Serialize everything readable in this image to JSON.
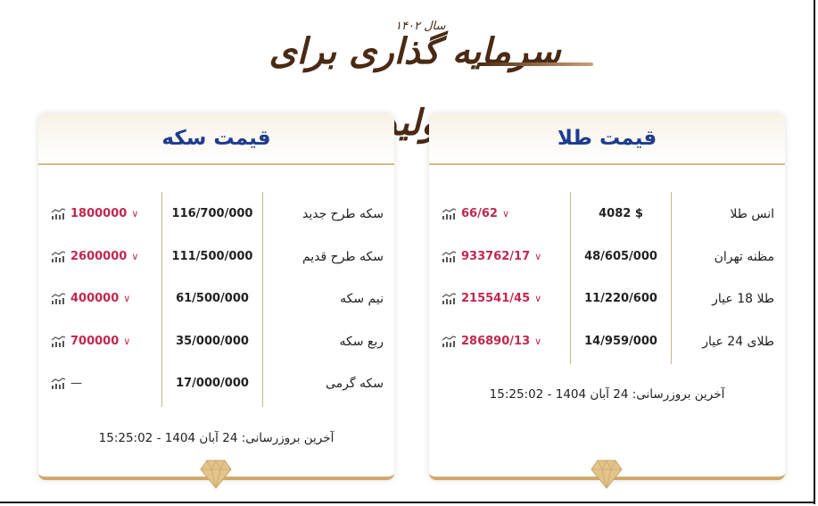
{
  "logo": {
    "text": "سرمایه گذاری برای تولید",
    "year": "سال ۱۴۰۲"
  },
  "colors": {
    "title": "#1f3c8f",
    "accent_gold": "#d2a96a",
    "change_down": "#c0284f"
  },
  "gold": {
    "title": "قیمت طلا",
    "rows": [
      {
        "name": "انس طلا",
        "price": "4082 $",
        "change": "66/62",
        "trend": "down"
      },
      {
        "name": "مظنه تهران",
        "price": "48/605/000",
        "change": "933762/17",
        "trend": "down"
      },
      {
        "name": "طلا 18 عیار",
        "price": "11/220/600",
        "change": "215541/45",
        "trend": "down"
      },
      {
        "name": "طلای 24 عیار",
        "price": "14/959/000",
        "change": "286890/13",
        "trend": "down"
      }
    ],
    "updated": "آخرین بروزرسانی: 24 آبان 1404 - 15:25:02"
  },
  "coin": {
    "title": "قیمت سکه",
    "rows": [
      {
        "name": "سکه طرح جدید",
        "price": "116/700/000",
        "change": "1800000",
        "trend": "down"
      },
      {
        "name": "سکه طرح قدیم",
        "price": "111/500/000",
        "change": "2600000",
        "trend": "down"
      },
      {
        "name": "نیم سکه",
        "price": "61/500/000",
        "change": "400000",
        "trend": "down"
      },
      {
        "name": "ربع سکه",
        "price": "35/000/000",
        "change": "700000",
        "trend": "down"
      },
      {
        "name": "سکه گرمی",
        "price": "17/000/000",
        "change": "—",
        "trend": "none"
      }
    ],
    "updated": "آخرین بروزرسانی: 24 آبان 1404 - 15:25:02"
  },
  "icons": {
    "chart": "bar-chart-icon",
    "trend_down": "chevron-down-icon",
    "footer": "diamond-icon"
  }
}
